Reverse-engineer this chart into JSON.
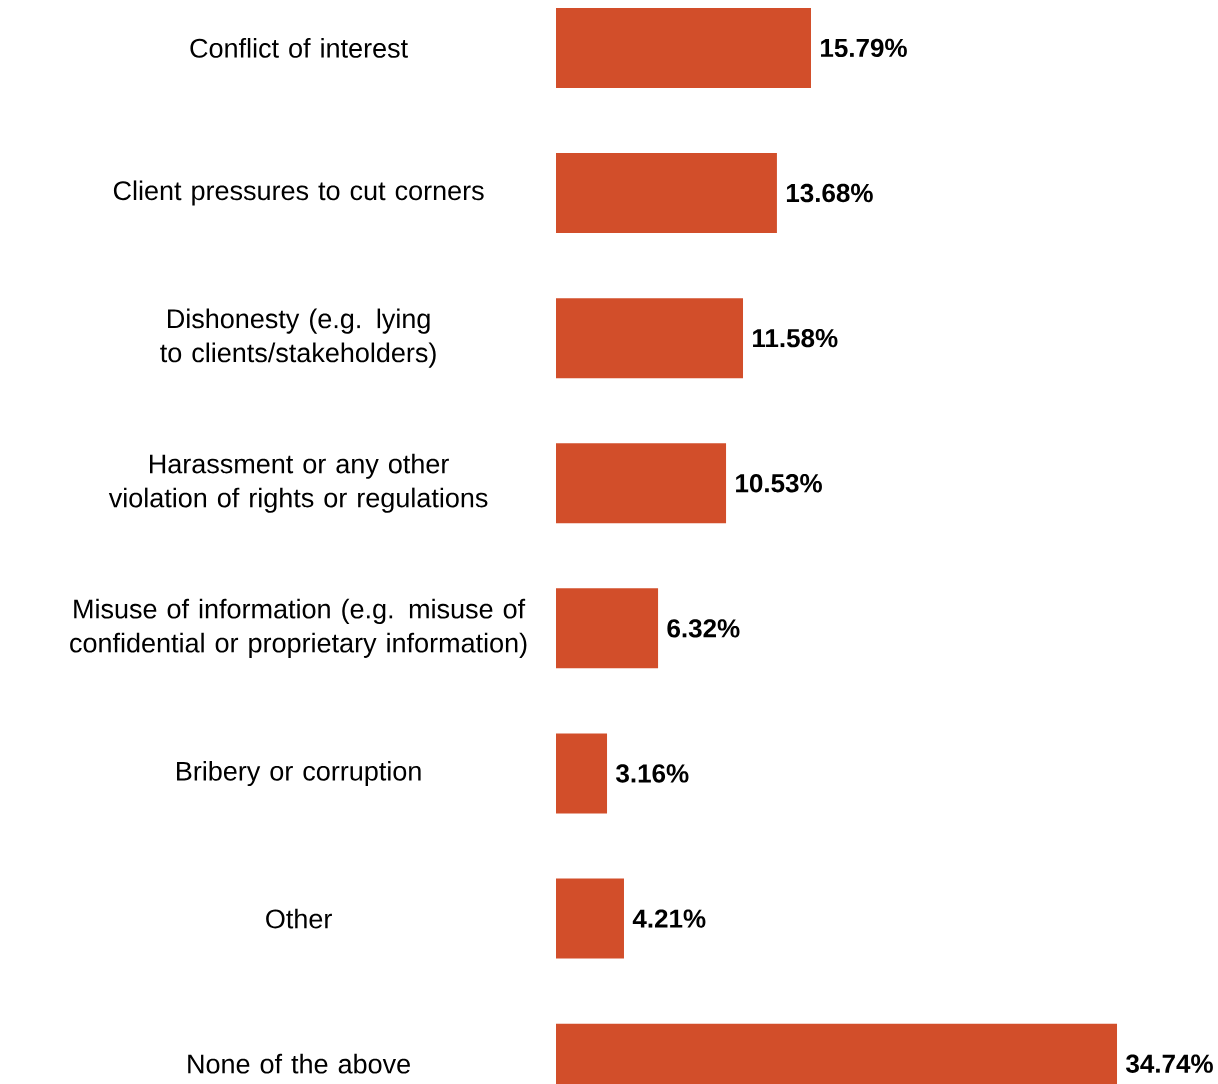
{
  "chart_data": {
    "type": "bar",
    "orientation": "horizontal",
    "categories": [
      "Conflict of interest",
      "Client pressures to cut corners",
      "Dishonesty (e.g. lying to clients/stakeholders)",
      "Harassment or any other violation of rights or regulations",
      "Misuse of information (e.g. misuse of confidential or proprietary information)",
      "Bribery or corruption",
      "Other",
      "None of the above"
    ],
    "values": [
      15.79,
      13.68,
      11.58,
      10.53,
      6.32,
      3.16,
      4.21,
      34.74
    ],
    "value_labels": [
      "15.79%",
      "13.68%",
      "11.58%",
      "10.53%",
      "6.32%",
      "3.16%",
      "4.21%",
      "34.74%"
    ],
    "color": "#d24e2a"
  }
}
